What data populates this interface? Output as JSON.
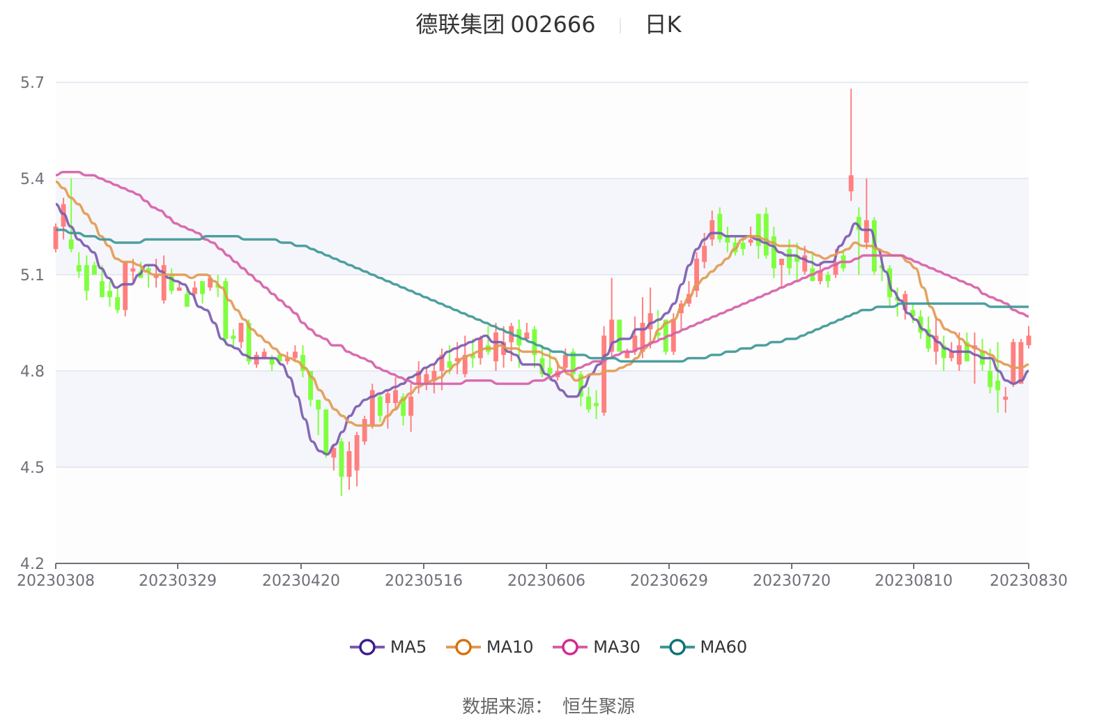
{
  "header": {
    "stock_name": "德联集团",
    "stock_code": "002666",
    "period": "日K"
  },
  "legend": [
    {
      "label": "MA5",
      "color": "#3f1d8c",
      "line": "#7b5bb0"
    },
    {
      "label": "MA10",
      "color": "#d8700f",
      "line": "#e29a52"
    },
    {
      "label": "MA30",
      "color": "#d22a8f",
      "line": "#d65fa8"
    },
    {
      "label": "MA60",
      "color": "#0d7377",
      "line": "#3f9797"
    }
  ],
  "source": {
    "label": "数据来源：",
    "value": "恒生聚源"
  },
  "colors": {
    "up": "#ff7f7f",
    "down": "#7fff3f",
    "band_a": "#f5f6fb",
    "band_b": "#fdfdfd",
    "grid": "#e0e4f0",
    "axis": "#6e7079"
  },
  "chart_data": {
    "type": "candlestick",
    "title": "德联集团 002666 日K",
    "xlabel": "",
    "ylabel": "",
    "ylim": [
      4.2,
      5.7
    ],
    "yticks": [
      4.2,
      4.5,
      4.8,
      5.1,
      5.4,
      5.7
    ],
    "xtick_labels": [
      "20230308",
      "20230329",
      "20230420",
      "20230516",
      "20230606",
      "20230629",
      "20230720",
      "20230810",
      "20230830"
    ],
    "legend_position": "bottom",
    "grid": true,
    "candles": [
      [
        5.18,
        5.25,
        5.17,
        5.26
      ],
      [
        5.25,
        5.32,
        5.21,
        5.34
      ],
      [
        5.21,
        5.18,
        5.17,
        5.4
      ],
      [
        5.13,
        5.11,
        5.09,
        5.17
      ],
      [
        5.13,
        5.05,
        5.02,
        5.16
      ],
      [
        5.13,
        5.1,
        5.1,
        5.14
      ],
      [
        5.08,
        5.03,
        5.03,
        5.13
      ],
      [
        5.05,
        5.03,
        5.0,
        5.08
      ],
      [
        5.03,
        4.99,
        4.98,
        5.06
      ],
      [
        4.99,
        5.14,
        4.97,
        5.14
      ],
      [
        5.11,
        5.12,
        5.08,
        5.15
      ],
      [
        5.11,
        5.09,
        5.09,
        5.14
      ],
      [
        5.12,
        5.11,
        5.06,
        5.13
      ],
      [
        5.09,
        5.1,
        5.06,
        5.15
      ],
      [
        5.02,
        5.13,
        5.01,
        5.16
      ],
      [
        5.1,
        5.05,
        5.04,
        5.12
      ],
      [
        5.05,
        5.06,
        5.05,
        5.08
      ],
      [
        5.04,
        5.0,
        5.0,
        5.06
      ],
      [
        5.04,
        5.06,
        5.02,
        5.08
      ],
      [
        5.08,
        5.04,
        5.01,
        5.08
      ],
      [
        5.06,
        5.09,
        5.05,
        5.1
      ],
      [
        5.07,
        5.06,
        5.03,
        5.1
      ],
      [
        5.08,
        4.9,
        4.88,
        5.09
      ],
      [
        4.91,
        4.9,
        4.87,
        4.93
      ],
      [
        4.89,
        4.95,
        4.87,
        4.95
      ],
      [
        4.95,
        4.83,
        4.82,
        4.96
      ],
      [
        4.82,
        4.85,
        4.81,
        4.86
      ],
      [
        4.84,
        4.86,
        4.84,
        4.87
      ],
      [
        4.84,
        4.82,
        4.8,
        4.85
      ],
      [
        4.85,
        4.83,
        4.82,
        4.85
      ],
      [
        4.83,
        4.84,
        4.82,
        4.86
      ],
      [
        4.84,
        4.86,
        4.83,
        4.88
      ],
      [
        4.85,
        4.8,
        4.78,
        4.88
      ],
      [
        4.8,
        4.71,
        4.69,
        4.8
      ],
      [
        4.71,
        4.68,
        4.6,
        4.71
      ],
      [
        4.68,
        4.54,
        4.53,
        4.68
      ],
      [
        4.53,
        4.56,
        4.49,
        4.57
      ],
      [
        4.58,
        4.47,
        4.41,
        4.59
      ],
      [
        4.47,
        4.55,
        4.43,
        4.58
      ],
      [
        4.49,
        4.6,
        4.44,
        4.61
      ],
      [
        4.58,
        4.65,
        4.57,
        4.66
      ],
      [
        4.63,
        4.74,
        4.62,
        4.76
      ],
      [
        4.72,
        4.66,
        4.64,
        4.73
      ],
      [
        4.7,
        4.73,
        4.62,
        4.74
      ],
      [
        4.7,
        4.74,
        4.68,
        4.78
      ],
      [
        4.72,
        4.66,
        4.63,
        4.73
      ],
      [
        4.66,
        4.72,
        4.61,
        4.76
      ],
      [
        4.76,
        4.8,
        4.73,
        4.83
      ],
      [
        4.76,
        4.79,
        4.74,
        4.81
      ],
      [
        4.77,
        4.8,
        4.73,
        4.82
      ],
      [
        4.8,
        4.85,
        4.74,
        4.87
      ],
      [
        4.83,
        4.81,
        4.79,
        4.88
      ],
      [
        4.83,
        4.84,
        4.79,
        4.89
      ],
      [
        4.79,
        4.85,
        4.78,
        4.91
      ],
      [
        4.85,
        4.84,
        4.81,
        4.9
      ],
      [
        4.84,
        4.9,
        4.82,
        4.91
      ],
      [
        4.88,
        4.86,
        4.85,
        4.94
      ],
      [
        4.83,
        4.92,
        4.8,
        4.95
      ],
      [
        4.85,
        4.89,
        4.81,
        4.94
      ],
      [
        4.89,
        4.94,
        4.83,
        4.95
      ],
      [
        4.93,
        4.88,
        4.81,
        4.96
      ],
      [
        4.9,
        4.92,
        4.89,
        4.95
      ],
      [
        4.93,
        4.85,
        4.81,
        4.94
      ],
      [
        4.84,
        4.79,
        4.78,
        4.88
      ],
      [
        4.81,
        4.79,
        4.77,
        4.86
      ],
      [
        4.78,
        4.8,
        4.77,
        4.83
      ],
      [
        4.81,
        4.85,
        4.8,
        4.87
      ],
      [
        4.86,
        4.79,
        4.78,
        4.87
      ],
      [
        4.79,
        4.72,
        4.69,
        4.8
      ],
      [
        4.72,
        4.68,
        4.67,
        4.75
      ],
      [
        4.7,
        4.69,
        4.65,
        4.74
      ],
      [
        4.67,
        4.91,
        4.66,
        4.94
      ],
      [
        4.86,
        4.96,
        4.84,
        5.09
      ],
      [
        4.96,
        4.86,
        4.86,
        4.96
      ],
      [
        4.84,
        4.86,
        4.84,
        4.87
      ],
      [
        4.86,
        4.91,
        4.85,
        4.97
      ],
      [
        4.86,
        4.95,
        4.84,
        5.03
      ],
      [
        4.93,
        4.98,
        4.87,
        5.06
      ],
      [
        4.92,
        4.91,
        4.9,
        4.99
      ],
      [
        4.96,
        4.86,
        4.85,
        4.96
      ],
      [
        4.86,
        4.96,
        4.85,
        4.98
      ],
      [
        4.98,
        5.01,
        4.93,
        5.02
      ],
      [
        5.01,
        5.04,
        5.0,
        5.08
      ],
      [
        5.05,
        5.15,
        5.03,
        5.17
      ],
      [
        5.14,
        5.19,
        5.12,
        5.23
      ],
      [
        5.21,
        5.27,
        5.19,
        5.3
      ],
      [
        5.29,
        5.21,
        5.2,
        5.31
      ],
      [
        5.22,
        5.2,
        5.17,
        5.25
      ],
      [
        5.2,
        5.17,
        5.16,
        5.22
      ],
      [
        5.2,
        5.18,
        5.16,
        5.22
      ],
      [
        5.2,
        5.21,
        5.19,
        5.25
      ],
      [
        5.29,
        5.19,
        5.15,
        5.29
      ],
      [
        5.29,
        5.16,
        5.15,
        5.31
      ],
      [
        5.22,
        5.12,
        5.09,
        5.25
      ],
      [
        5.13,
        5.15,
        5.06,
        5.15
      ],
      [
        5.18,
        5.12,
        5.1,
        5.21
      ],
      [
        5.16,
        5.14,
        5.08,
        5.2
      ],
      [
        5.11,
        5.16,
        5.1,
        5.19
      ],
      [
        5.12,
        5.08,
        5.08,
        5.17
      ],
      [
        5.08,
        5.11,
        5.07,
        5.14
      ],
      [
        5.1,
        5.08,
        5.06,
        5.11
      ],
      [
        5.1,
        5.14,
        5.09,
        5.18
      ],
      [
        5.16,
        5.12,
        5.11,
        5.17
      ],
      [
        5.36,
        5.41,
        5.33,
        5.68
      ],
      [
        5.28,
        5.24,
        5.1,
        5.31
      ],
      [
        5.2,
        5.27,
        5.18,
        5.4
      ],
      [
        5.27,
        5.11,
        5.1,
        5.28
      ],
      [
        5.13,
        5.12,
        5.08,
        5.16
      ],
      [
        5.12,
        5.03,
        5.0,
        5.13
      ],
      [
        5.03,
        5.02,
        4.97,
        5.06
      ],
      [
        4.99,
        5.04,
        4.96,
        5.05
      ],
      [
        4.99,
        4.97,
        4.95,
        5.01
      ],
      [
        4.97,
        4.92,
        4.9,
        4.99
      ],
      [
        4.93,
        4.87,
        4.86,
        4.97
      ],
      [
        4.86,
        4.91,
        4.82,
        4.97
      ],
      [
        4.88,
        4.84,
        4.8,
        4.91
      ],
      [
        4.84,
        4.86,
        4.83,
        4.89
      ],
      [
        4.82,
        4.88,
        4.8,
        4.92
      ],
      [
        4.89,
        4.83,
        4.83,
        4.92
      ],
      [
        4.87,
        4.88,
        4.76,
        4.92
      ],
      [
        4.86,
        4.82,
        4.8,
        4.9
      ],
      [
        4.8,
        4.75,
        4.73,
        4.87
      ],
      [
        4.77,
        4.74,
        4.67,
        4.89
      ],
      [
        4.71,
        4.72,
        4.67,
        4.75
      ],
      [
        4.76,
        4.89,
        4.75,
        4.9
      ],
      [
        4.76,
        4.89,
        4.76,
        4.9
      ],
      [
        4.88,
        4.91,
        4.87,
        4.94
      ]
    ],
    "series": [
      {
        "name": "MA5",
        "values": [
          5.32,
          5.29,
          5.25,
          5.21,
          5.19,
          5.17,
          5.12,
          5.09,
          5.06,
          5.07,
          5.07,
          5.1,
          5.13,
          5.13,
          5.11,
          5.09,
          5.08,
          5.07,
          5.04,
          5.0,
          4.99,
          4.95,
          4.9,
          4.88,
          4.87,
          4.85,
          4.84,
          4.84,
          4.84,
          4.84,
          4.82,
          4.78,
          4.72,
          4.65,
          4.58,
          4.55,
          4.54,
          4.57,
          4.61,
          4.66,
          4.69,
          4.71,
          4.72,
          4.73,
          4.74,
          4.75,
          4.76,
          4.78,
          4.79,
          4.81,
          4.82,
          4.84,
          4.86,
          4.87,
          4.88,
          4.89,
          4.9,
          4.91,
          4.89,
          4.89,
          4.86,
          4.85,
          4.82,
          4.82,
          4.82,
          4.79,
          4.77,
          4.74,
          4.72,
          4.72,
          4.75,
          4.79,
          4.82,
          4.85,
          4.89,
          4.9,
          4.9,
          4.93,
          4.93,
          4.95,
          4.96,
          4.98,
          5.01,
          5.07,
          5.13,
          5.18,
          5.21,
          5.23,
          5.23,
          5.22,
          5.22,
          5.22,
          5.22,
          5.21,
          5.2,
          5.19,
          5.17,
          5.16,
          5.16,
          5.15,
          5.14,
          5.13,
          5.14,
          5.14,
          5.19,
          5.22,
          5.26,
          5.24,
          5.24,
          5.18,
          5.11,
          5.05,
          5.02,
          4.98,
          4.96,
          4.93,
          4.91,
          4.89,
          4.87,
          4.86,
          4.86,
          4.86,
          4.85,
          4.84,
          4.84,
          4.8,
          4.77,
          4.76,
          4.77,
          4.8
        ]
      },
      {
        "name": "MA10",
        "values": [
          5.39,
          5.37,
          5.34,
          5.32,
          5.29,
          5.26,
          5.22,
          5.19,
          5.15,
          5.14,
          5.14,
          5.13,
          5.11,
          5.1,
          5.1,
          5.1,
          5.1,
          5.1,
          5.09,
          5.1,
          5.1,
          5.08,
          5.06,
          5.02,
          4.99,
          4.96,
          4.93,
          4.91,
          4.89,
          4.87,
          4.85,
          4.84,
          4.83,
          4.81,
          4.78,
          4.74,
          4.71,
          4.68,
          4.66,
          4.64,
          4.63,
          4.63,
          4.63,
          4.63,
          4.66,
          4.68,
          4.71,
          4.73,
          4.75,
          4.76,
          4.77,
          4.78,
          4.8,
          4.82,
          4.84,
          4.85,
          4.86,
          4.87,
          4.87,
          4.88,
          4.87,
          4.87,
          4.86,
          4.86,
          4.86,
          4.85,
          4.84,
          4.81,
          4.79,
          4.77,
          4.78,
          4.79,
          4.79,
          4.8,
          4.8,
          4.81,
          4.82,
          4.84,
          4.87,
          4.89,
          4.93,
          4.95,
          4.96,
          5.0,
          5.03,
          5.07,
          5.09,
          5.11,
          5.13,
          5.15,
          5.18,
          5.21,
          5.22,
          5.22,
          5.21,
          5.2,
          5.19,
          5.19,
          5.19,
          5.18,
          5.17,
          5.16,
          5.15,
          5.16,
          5.17,
          5.18,
          5.2,
          5.19,
          5.19,
          5.18,
          5.17,
          5.16,
          5.16,
          5.14,
          5.12,
          5.06,
          5.0,
          4.96,
          4.93,
          4.92,
          4.9,
          4.88,
          4.87,
          4.86,
          4.85,
          4.83,
          4.82,
          4.81,
          4.81,
          4.82
        ]
      },
      {
        "name": "MA30",
        "values": [
          5.41,
          5.42,
          5.42,
          5.42,
          5.41,
          5.41,
          5.4,
          5.39,
          5.38,
          5.37,
          5.36,
          5.35,
          5.33,
          5.31,
          5.3,
          5.28,
          5.26,
          5.25,
          5.24,
          5.23,
          5.21,
          5.2,
          5.18,
          5.16,
          5.14,
          5.12,
          5.1,
          5.08,
          5.06,
          5.04,
          5.02,
          5.0,
          4.98,
          4.95,
          4.93,
          4.91,
          4.9,
          4.88,
          4.88,
          4.86,
          4.85,
          4.84,
          4.83,
          4.81,
          4.8,
          4.79,
          4.78,
          4.77,
          4.76,
          4.76,
          4.76,
          4.76,
          4.76,
          4.76,
          4.76,
          4.77,
          4.77,
          4.77,
          4.77,
          4.76,
          4.76,
          4.76,
          4.76,
          4.76,
          4.77,
          4.77,
          4.78,
          4.79,
          4.8,
          4.8,
          4.81,
          4.82,
          4.83,
          4.83,
          4.84,
          4.85,
          4.86,
          4.86,
          4.87,
          4.88,
          4.89,
          4.9,
          4.91,
          4.92,
          4.93,
          4.94,
          4.95,
          4.96,
          4.97,
          4.98,
          4.99,
          5.0,
          5.01,
          5.02,
          5.03,
          5.04,
          5.05,
          5.06,
          5.07,
          5.08,
          5.09,
          5.1,
          5.11,
          5.12,
          5.13,
          5.14,
          5.14,
          5.15,
          5.16,
          5.16,
          5.16,
          5.16,
          5.16,
          5.16,
          5.15,
          5.14,
          5.13,
          5.12,
          5.11,
          5.1,
          5.09,
          5.08,
          5.07,
          5.06,
          5.04,
          5.03,
          5.02,
          5.01,
          4.99,
          4.98,
          4.97
        ]
      },
      {
        "name": "MA60",
        "values": [
          5.24,
          5.24,
          5.23,
          5.23,
          5.22,
          5.22,
          5.21,
          5.21,
          5.2,
          5.2,
          5.2,
          5.2,
          5.21,
          5.21,
          5.21,
          5.21,
          5.21,
          5.21,
          5.21,
          5.21,
          5.22,
          5.22,
          5.22,
          5.22,
          5.22,
          5.21,
          5.21,
          5.21,
          5.21,
          5.21,
          5.2,
          5.2,
          5.19,
          5.19,
          5.18,
          5.17,
          5.16,
          5.15,
          5.14,
          5.13,
          5.12,
          5.11,
          5.1,
          5.09,
          5.08,
          5.07,
          5.06,
          5.05,
          5.04,
          5.03,
          5.02,
          5.01,
          5.0,
          4.99,
          4.98,
          4.97,
          4.96,
          4.95,
          4.94,
          4.93,
          4.92,
          4.91,
          4.9,
          4.89,
          4.88,
          4.87,
          4.86,
          4.86,
          4.85,
          4.85,
          4.85,
          4.84,
          4.84,
          4.84,
          4.84,
          4.83,
          4.83,
          4.83,
          4.83,
          4.83,
          4.83,
          4.83,
          4.83,
          4.83,
          4.84,
          4.84,
          4.84,
          4.85,
          4.85,
          4.86,
          4.86,
          4.87,
          4.87,
          4.88,
          4.88,
          4.89,
          4.89,
          4.9,
          4.9,
          4.91,
          4.92,
          4.93,
          4.94,
          4.95,
          4.96,
          4.97,
          4.98,
          4.99,
          4.99,
          5.0,
          5.0,
          5.0,
          5.01,
          5.01,
          5.01,
          5.01,
          5.01,
          5.01,
          5.01,
          5.01,
          5.01,
          5.01,
          5.01,
          5.01,
          5.0,
          5.0,
          5.0,
          5.0,
          5.0,
          5.0
        ]
      }
    ]
  }
}
